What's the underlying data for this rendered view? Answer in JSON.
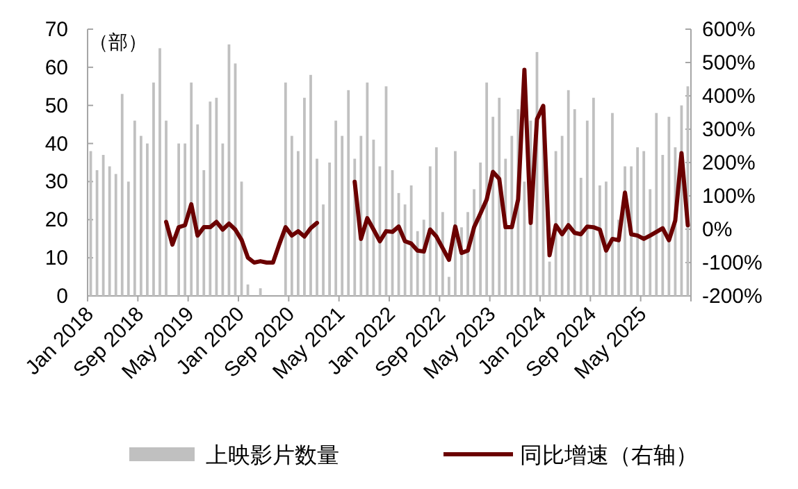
{
  "chart_data": {
    "type": "bar",
    "ylabel": "（部）",
    "categories": [
      "Jan 2018",
      null,
      null,
      null,
      null,
      null,
      null,
      null,
      "Sep 2018",
      null,
      null,
      null,
      null,
      null,
      null,
      null,
      "May 2019",
      null,
      null,
      null,
      null,
      null,
      null,
      null,
      "Jan 2020",
      null,
      null,
      null,
      null,
      null,
      null,
      null,
      "Sep 2020",
      null,
      null,
      null,
      null,
      null,
      null,
      null,
      "May 2021",
      null,
      null,
      null,
      null,
      null,
      null,
      null,
      "Jan 2022",
      null,
      null,
      null,
      null,
      null,
      null,
      null,
      "Sep 2022",
      null,
      null,
      null,
      null,
      null,
      null,
      null,
      "May 2023",
      null,
      null,
      null,
      null,
      null,
      null,
      null,
      "Jan 2024",
      null,
      null,
      null,
      null,
      null,
      null,
      null,
      "Sep 2024",
      null,
      null,
      null,
      null,
      null,
      null,
      null,
      "May 2025",
      null,
      null,
      null,
      null,
      null,
      null,
      null
    ],
    "series": [
      {
        "name": "上映影片数量",
        "color": "#c0c0c0",
        "values": [
          38,
          33,
          37,
          34,
          32,
          53,
          30,
          46,
          42,
          40,
          56,
          65,
          46,
          null,
          40,
          40,
          56,
          45,
          33,
          51,
          52,
          40,
          66,
          61,
          30,
          3,
          null,
          2,
          null,
          null,
          null,
          56,
          42,
          38,
          52,
          58,
          36,
          24,
          35,
          46,
          42,
          54,
          36,
          42,
          56,
          41,
          34,
          55,
          33,
          27,
          24,
          29,
          17,
          20,
          34,
          39,
          22,
          5,
          38,
          18,
          22,
          28,
          35,
          56,
          47,
          52,
          36,
          42,
          49,
          30,
          46,
          64,
          46,
          9,
          38,
          42,
          54,
          49,
          31,
          46,
          52,
          29,
          30,
          48,
          20,
          34,
          34,
          39,
          38,
          28,
          48,
          37,
          47,
          39,
          50,
          55
        ]
      },
      {
        "name": "同比增速（右轴）",
        "type": "line",
        "axis": "y2",
        "color": "#6b0000",
        "values": [
          null,
          null,
          null,
          null,
          null,
          null,
          null,
          null,
          null,
          null,
          null,
          null,
          22,
          -46,
          6,
          12,
          75,
          -19,
          6,
          6,
          22,
          -1,
          17,
          -1,
          -32,
          -85,
          -100,
          -96,
          -100,
          -100,
          -45,
          6,
          -19,
          -6,
          -22,
          3,
          19,
          null,
          null,
          null,
          null,
          null,
          142,
          -29,
          33,
          -1,
          -36,
          -6,
          -8,
          8,
          -36,
          -43,
          -64,
          -67,
          -1,
          -22,
          -57,
          -92,
          8,
          -71,
          -64,
          6,
          47,
          89,
          172,
          151,
          6,
          6,
          89,
          478,
          19,
          330,
          370,
          -78,
          12,
          -15,
          12,
          -11,
          -15,
          8,
          6,
          -1,
          -64,
          -29,
          -33,
          110,
          -15,
          -19,
          -29,
          -19,
          -8,
          3,
          -33,
          26,
          228,
          12
        ]
      }
    ],
    "ylim": [
      0,
      70
    ],
    "yticks": [
      0,
      10,
      20,
      30,
      40,
      50,
      60,
      70
    ],
    "y2lim": [
      -200,
      600
    ],
    "y2ticks": [
      {
        "value": -200,
        "label": "-200%"
      },
      {
        "value": -100,
        "label": "-100%"
      },
      {
        "value": 0,
        "label": "0%"
      },
      {
        "value": 100,
        "label": "100%"
      },
      {
        "value": 200,
        "label": "200%"
      },
      {
        "value": 300,
        "label": "300%"
      },
      {
        "value": 400,
        "label": "400%"
      },
      {
        "value": 500,
        "label": "500%"
      },
      {
        "value": 600,
        "label": "600%"
      }
    ],
    "legend": "bottom"
  }
}
